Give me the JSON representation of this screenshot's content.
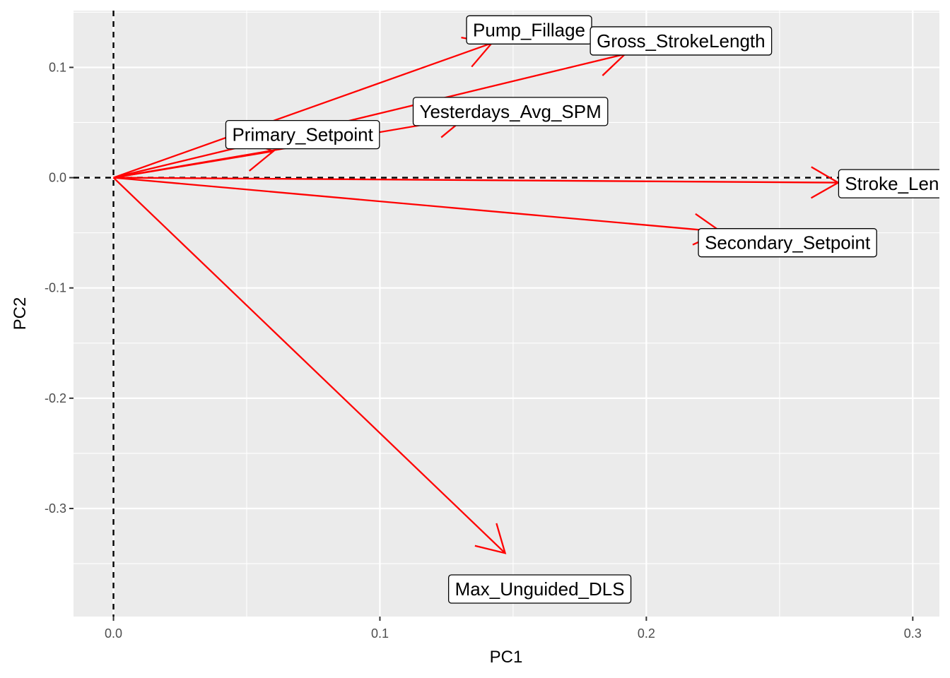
{
  "chart_data": {
    "type": "biplot-vectors",
    "xlabel": "PC1",
    "ylabel": "PC2",
    "xlim": [
      -0.015,
      0.31
    ],
    "ylim": [
      -0.398,
      0.1515
    ],
    "x_ticks": [
      0.0,
      0.1,
      0.2,
      0.3
    ],
    "x_tick_labels": [
      "0.0",
      "0.1",
      "0.2",
      "0.3"
    ],
    "y_ticks": [
      -0.3,
      -0.2,
      -0.1,
      0.0,
      0.1
    ],
    "y_tick_labels": [
      "-0.3",
      "-0.2",
      "-0.1",
      "0.0",
      "0.1"
    ],
    "grid": true,
    "reference_lines": {
      "x": 0,
      "y": 0,
      "style": "dashed"
    },
    "arrow_color": "#ff0000",
    "panel_color": "#ebebeb",
    "vectors": [
      {
        "name": "Pump_Fillage",
        "x": 0.142,
        "y": 0.122,
        "label_x": 0.156,
        "label_y": 0.134
      },
      {
        "name": "Gross_StrokeLength",
        "x": 0.192,
        "y": 0.112,
        "label_x": 0.213,
        "label_y": 0.124
      },
      {
        "name": "Yesterdays_Avg_SPM",
        "x": 0.132,
        "y": 0.0545,
        "label_x": 0.149,
        "label_y": 0.06
      },
      {
        "name": "Primary_Setpoint",
        "x": 0.06,
        "y": 0.024,
        "label_x": 0.071,
        "label_y": 0.039
      },
      {
        "name": "Stroke_Length",
        "x": 0.272,
        "y": -0.0045,
        "label_x": 0.297,
        "label_y": -0.0055
      },
      {
        "name": "Secondary_Setpoint",
        "x": 0.228,
        "y": -0.049,
        "label_x": 0.253,
        "label_y": -0.059
      },
      {
        "name": "Max_Unguided_DLS",
        "x": 0.147,
        "y": -0.3405,
        "label_x": 0.16,
        "label_y": -0.373
      }
    ]
  }
}
